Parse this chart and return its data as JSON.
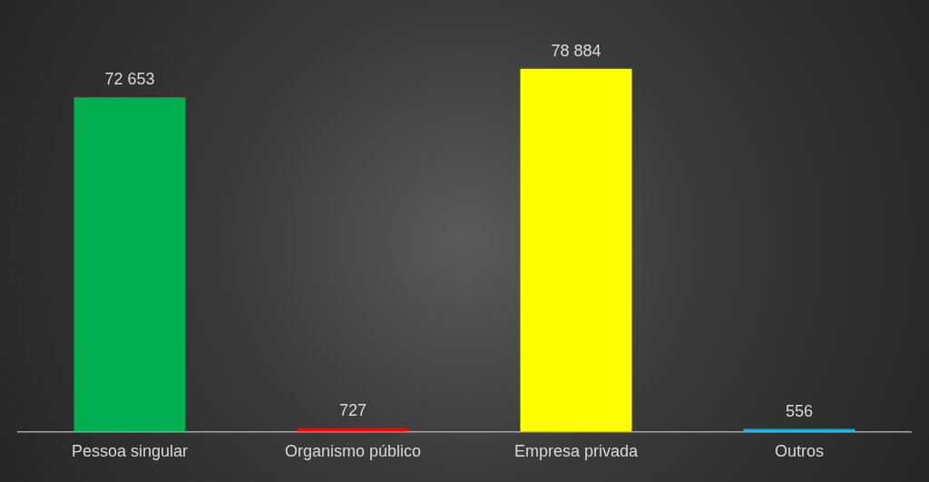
{
  "chart_data": {
    "type": "bar",
    "categories": [
      "Pessoa singular",
      "Organismo público",
      "Empresa privada",
      "Outros"
    ],
    "values": [
      72653,
      727,
      78884,
      556
    ],
    "colors": [
      "#00b050",
      "#ff0000",
      "#ffff00",
      "#00b0f0"
    ],
    "value_labels": [
      "72 653",
      "727",
      "78 884",
      "556"
    ],
    "grid": false,
    "legend": false
  }
}
